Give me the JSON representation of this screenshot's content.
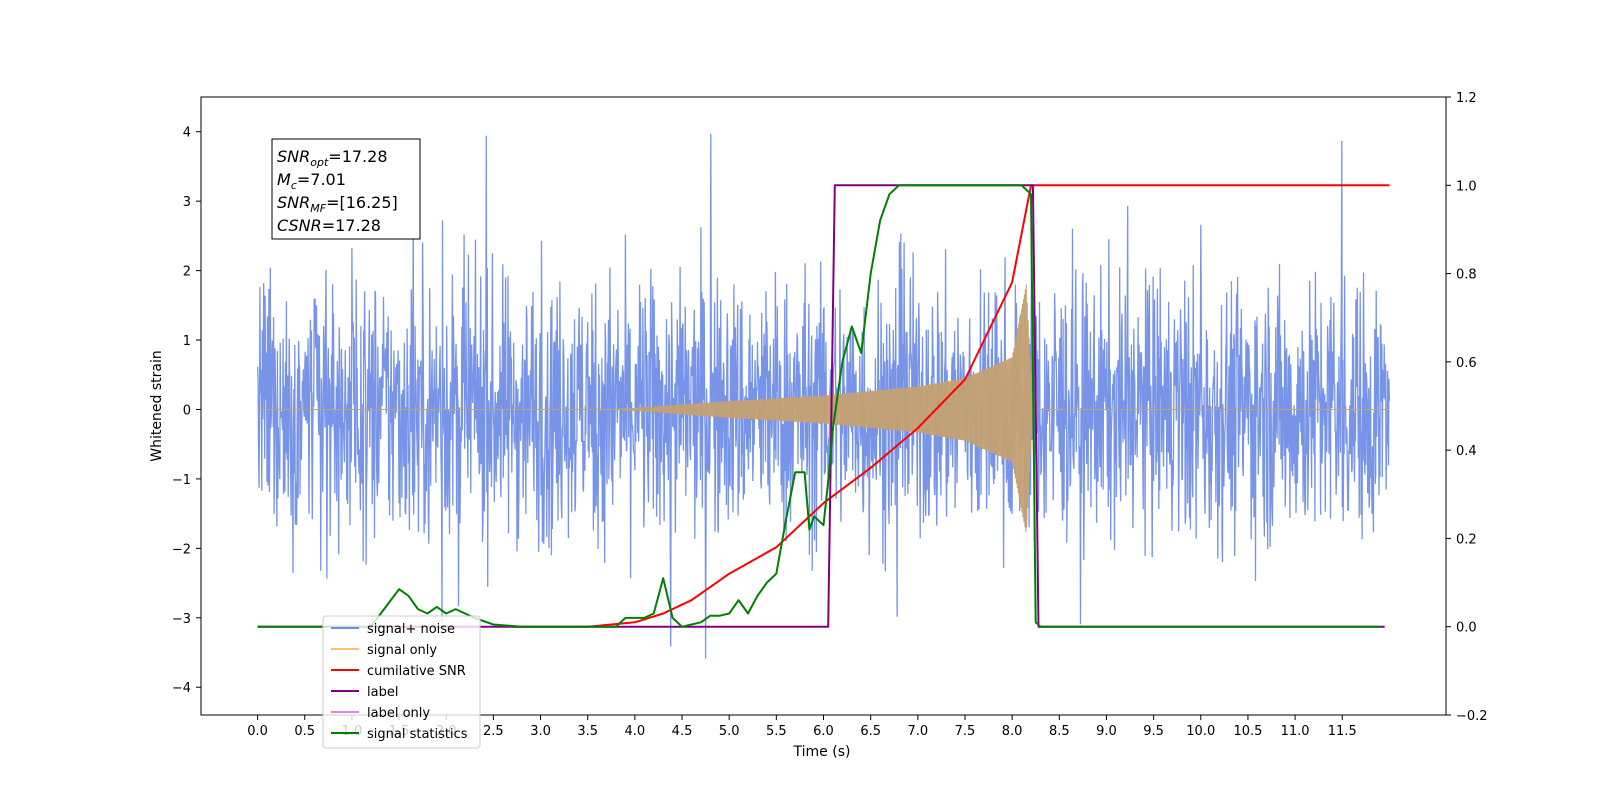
{
  "chart_data": {
    "type": "line",
    "title": "",
    "xlabel": "Time (s)",
    "ylabel": "Whitened strain",
    "xlim": [
      -0.6,
      12.6
    ],
    "ylim_left": [
      -4.4,
      4.5
    ],
    "ylim_right": [
      -0.2,
      1.2
    ],
    "x_ticks": [
      "0.0",
      "0.5",
      "1.0",
      "1.5",
      "2.0",
      "2.5",
      "3.0",
      "3.5",
      "4.0",
      "4.5",
      "5.0",
      "5.5",
      "6.0",
      "6.5",
      "7.0",
      "7.5",
      "8.0",
      "8.5",
      "9.0",
      "9.5",
      "10.0",
      "10.5",
      "11.0",
      "11.5"
    ],
    "y_ticks_left": [
      "4",
      "3",
      "2",
      "1",
      "0",
      "−1",
      "−2",
      "−3",
      "−4"
    ],
    "y_ticks_right": [
      "1.2",
      "1.0",
      "0.8",
      "0.6",
      "0.4",
      "0.2",
      "0.0",
      "−0.2"
    ],
    "grid": false,
    "legend_position": "lower-left",
    "annotation": {
      "lines": [
        {
          "main": "SNR",
          "sub": "opt",
          "value": "=17.28"
        },
        {
          "main": "M",
          "sub": "c",
          "value": "=7.01"
        },
        {
          "main": "SNR",
          "sub": "MF",
          "value": "=[16.25]"
        },
        {
          "main": "CSNR",
          "sub": "",
          "value": "=17.28"
        }
      ]
    },
    "legend": [
      {
        "label": "signal+ noise",
        "color": "#6b8be6"
      },
      {
        "label": "signal only",
        "color": "#f7c46c"
      },
      {
        "label": "cumilative SNR",
        "color": "#ff0000"
      },
      {
        "label": "label",
        "color": "#800080"
      },
      {
        "label": "label only",
        "color": "#dd88dd"
      },
      {
        "label": "signal statistics",
        "color": "#008000"
      }
    ],
    "series": [
      {
        "name": "signal+ noise",
        "axis": "left",
        "color": "#6b8be6",
        "kind": "noise",
        "x_range": [
          0.0,
          12.0
        ],
        "typical_envelope": 2.2,
        "max": 4.1,
        "min": -3.9
      },
      {
        "name": "signal only",
        "axis": "left",
        "color": "#c4a071",
        "kind": "chirp",
        "x_range": [
          0.0,
          12.0
        ],
        "start": 3.8,
        "merger": 8.2,
        "amplitude_points": [
          [
            3.8,
            0.0
          ],
          [
            5.0,
            0.12
          ],
          [
            6.0,
            0.2
          ],
          [
            7.0,
            0.33
          ],
          [
            7.5,
            0.45
          ],
          [
            8.0,
            0.75
          ],
          [
            8.15,
            1.8
          ],
          [
            8.22,
            0.0
          ]
        ]
      },
      {
        "name": "cumilative SNR",
        "axis": "right",
        "color": "#ff0000",
        "x": [
          2.7,
          3.5,
          4.0,
          4.3,
          4.6,
          5.0,
          5.5,
          6.0,
          6.5,
          7.0,
          7.5,
          8.0,
          8.2,
          11.5,
          12.0
        ],
        "y": [
          0.0,
          0.0,
          0.01,
          0.03,
          0.06,
          0.12,
          0.18,
          0.28,
          0.36,
          0.45,
          0.56,
          0.78,
          1.0,
          1.0,
          1.0
        ]
      },
      {
        "name": "label",
        "axis": "right",
        "color": "#800080",
        "x": [
          0.0,
          6.05,
          6.12,
          8.22,
          8.28,
          11.95
        ],
        "y": [
          0.0,
          0.0,
          1.0,
          1.0,
          0.0,
          0.0
        ]
      },
      {
        "name": "signal statistics",
        "axis": "right",
        "color": "#008000",
        "x": [
          0.0,
          1.2,
          1.5,
          1.6,
          1.7,
          1.8,
          1.9,
          2.0,
          2.1,
          2.2,
          2.3,
          2.5,
          2.8,
          3.0,
          3.5,
          3.8,
          3.9,
          4.1,
          4.2,
          4.3,
          4.4,
          4.5,
          4.7,
          4.8,
          4.9,
          5.0,
          5.1,
          5.2,
          5.3,
          5.4,
          5.5,
          5.6,
          5.7,
          5.8,
          5.85,
          5.9,
          6.0,
          6.05,
          6.1,
          6.2,
          6.3,
          6.4,
          6.5,
          6.6,
          6.7,
          6.8,
          6.9,
          7.0,
          8.1,
          8.2,
          8.25,
          8.3,
          11.9
        ],
        "y": [
          0.0,
          0.0,
          0.085,
          0.07,
          0.04,
          0.03,
          0.045,
          0.03,
          0.04,
          0.03,
          0.02,
          0.005,
          0.0,
          0.0,
          0.0,
          0.0,
          0.02,
          0.02,
          0.03,
          0.11,
          0.02,
          0.0,
          0.01,
          0.025,
          0.025,
          0.03,
          0.06,
          0.03,
          0.07,
          0.1,
          0.12,
          0.24,
          0.35,
          0.35,
          0.22,
          0.25,
          0.23,
          0.33,
          0.45,
          0.6,
          0.68,
          0.62,
          0.8,
          0.92,
          0.98,
          1.0,
          1.0,
          1.0,
          1.0,
          0.98,
          0.01,
          0.0,
          0.0
        ]
      }
    ]
  }
}
